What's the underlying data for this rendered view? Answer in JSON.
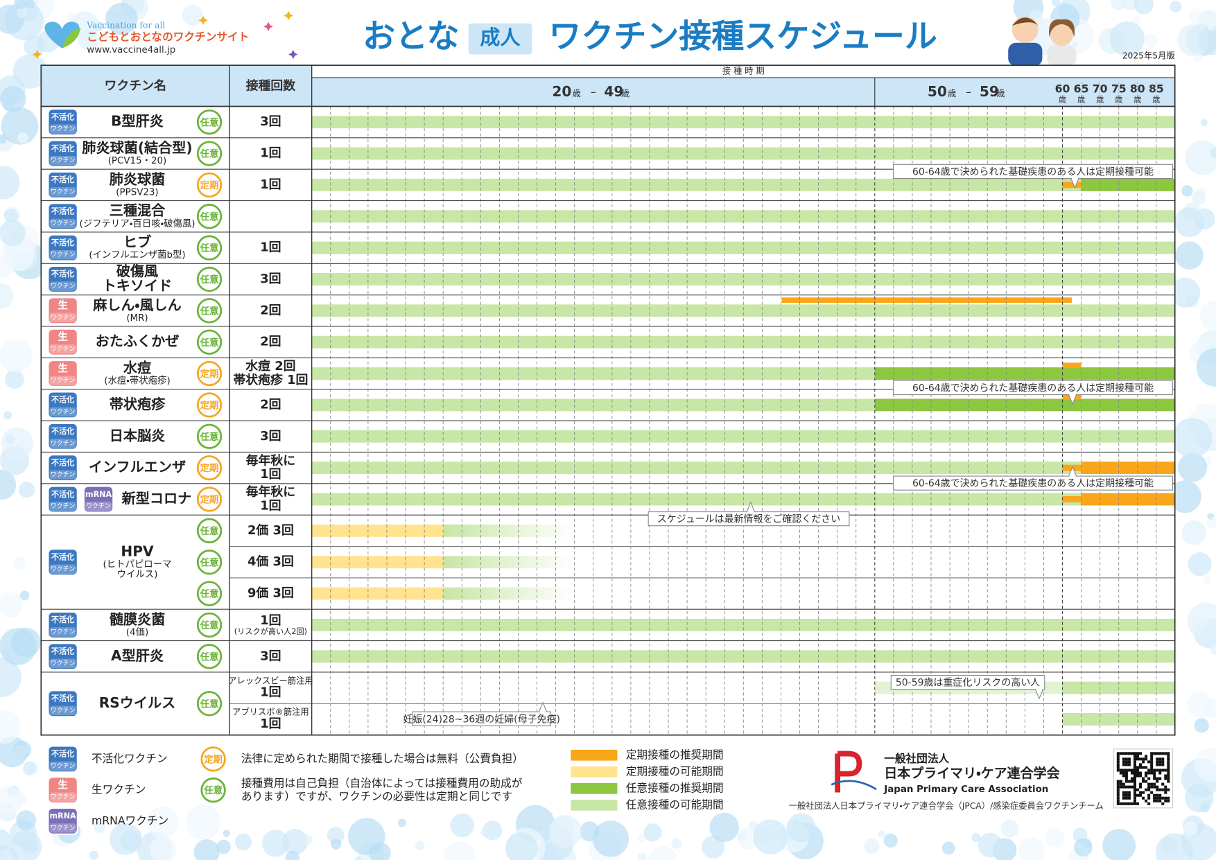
{
  "header": {
    "tagline": "Vaccination for all",
    "site_name": "こどもとおとなのワクチンサイト",
    "url": "www.vaccine4all.jp",
    "title_pre": "おとな",
    "title_badge": "成人",
    "title_main": "ワクチン接種スケジュール",
    "edition": "2025年5月版"
  },
  "table": {
    "col_name": "ワクチン名",
    "col_count": "接種回数",
    "col_period": "接 種 時 期",
    "age_ranges": [
      {
        "from": "20",
        "to": "49"
      },
      {
        "from": "50",
        "to": "59"
      }
    ],
    "age_unit": "歳",
    "range_dash": "–",
    "age_points": [
      "60",
      "65",
      "70",
      "75",
      "80",
      "85"
    ],
    "rows": [
      {
        "badges": [
          [
            "不活化",
            "ワクチン"
          ]
        ],
        "name": [
          "B型肝炎"
        ],
        "category": "任意",
        "subs": [
          {
            "count": [
              "3回"
            ]
          }
        ]
      },
      {
        "badges": [
          [
            "不活化",
            "ワクチン"
          ]
        ],
        "name": [
          "肺炎球菌(結合型)",
          "(PCV15・20)"
        ],
        "category": "任意",
        "subs": [
          {
            "count": [
              "1回"
            ]
          }
        ]
      },
      {
        "badges": [
          [
            "不活化",
            "ワクチン"
          ]
        ],
        "name": [
          "肺炎球菌",
          "(PPSV23)"
        ],
        "category": "定期",
        "subs": [
          {
            "count": [
              "1回"
            ]
          }
        ]
      },
      {
        "badges": [
          [
            "不活化",
            "ワクチン"
          ]
        ],
        "name": [
          "三種混合",
          "(ジフテリア・百日咳・破傷風)"
        ],
        "category": "任意",
        "subs": [
          {
            "count": []
          }
        ]
      },
      {
        "badges": [
          [
            "不活化",
            "ワクチン"
          ]
        ],
        "name": [
          "ヒブ",
          "(インフルエンザ菌b型)"
        ],
        "category": "任意",
        "subs": [
          {
            "count": [
              "1回"
            ]
          }
        ]
      },
      {
        "badges": [
          [
            "不活化",
            "ワクチン"
          ]
        ],
        "name": [
          "破傷風",
          "トキソイド"
        ],
        "category": "任意",
        "subs": [
          {
            "count": [
              "3回"
            ]
          }
        ]
      },
      {
        "badges": [
          [
            "生",
            "ワクチン"
          ]
        ],
        "name": [
          "麻しん・風しん",
          "(MR)"
        ],
        "category": "任意",
        "subs": [
          {
            "count": [
              "2回"
            ]
          }
        ]
      },
      {
        "badges": [
          [
            "生",
            "ワクチン"
          ]
        ],
        "name": [
          "おたふくかぜ"
        ],
        "category": "任意",
        "subs": [
          {
            "count": [
              "2回"
            ]
          }
        ]
      },
      {
        "badges": [
          [
            "生",
            "ワクチン"
          ]
        ],
        "name": [
          "水痘",
          "(水痘・帯状疱疹)"
        ],
        "category": "定期",
        "subs": [
          {
            "count": [
              "水痘 2回",
              "帯状疱疹 1回"
            ]
          }
        ]
      },
      {
        "badges": [
          [
            "不活化",
            "ワクチン"
          ]
        ],
        "name": [
          "帯状疱疹"
        ],
        "category": "定期",
        "subs": [
          {
            "count": [
              "2回"
            ]
          }
        ]
      },
      {
        "badges": [
          [
            "不活化",
            "ワクチン"
          ]
        ],
        "name": [
          "日本脳炎"
        ],
        "category": "任意",
        "subs": [
          {
            "count": [
              "3回"
            ]
          }
        ]
      },
      {
        "badges": [
          [
            "不活化",
            "ワクチン"
          ]
        ],
        "name": [
          "インフルエンザ"
        ],
        "category": "定期",
        "subs": [
          {
            "count": [
              "毎年秋に",
              "1回"
            ]
          }
        ]
      },
      {
        "badges": [
          [
            "不活化",
            "ワクチン"
          ],
          [
            "mRNA",
            "ワクチン"
          ]
        ],
        "name": [
          "新型コロナ"
        ],
        "category": "定期",
        "subs": [
          {
            "count": [
              "毎年秋に",
              "1回"
            ]
          }
        ]
      },
      {
        "badges": [
          [
            "不活化",
            "ワクチン"
          ]
        ],
        "name": [
          "HPV",
          "(ヒトパピローマ",
          "ウイルス)"
        ],
        "subs": [
          {
            "category": "任意",
            "count": [
              "2価 3回"
            ]
          },
          {
            "category": "任意",
            "count": [
              "4価 3回"
            ]
          },
          {
            "category": "任意",
            "count": [
              "9価 3回"
            ]
          }
        ]
      },
      {
        "badges": [
          [
            "不活化",
            "ワクチン"
          ]
        ],
        "name": [
          "髄膜炎菌",
          "(4価)"
        ],
        "category": "任意",
        "subs": [
          {
            "count": [
              "1回",
              "(リスクが高い人2回)"
            ]
          }
        ]
      },
      {
        "badges": [
          [
            "不活化",
            "ワクチン"
          ]
        ],
        "name": [
          "A型肝炎"
        ],
        "category": "任意",
        "subs": [
          {
            "count": [
              "3回"
            ]
          }
        ]
      },
      {
        "badges": [
          [
            "不活化",
            "ワクチン"
          ]
        ],
        "name": [
          "RSウイルス"
        ],
        "category": "任意",
        "subs": [
          {
            "count": [
              "アレックスビー筋注用",
              "1回"
            ]
          },
          {
            "count": [
              "アブリスボ®筋注用",
              "1回"
            ]
          }
        ]
      }
    ],
    "callouts": [
      "60-64歳で決められた基礎疾患のある人は定期接種可能",
      "スケジュールは最新情報をご確認ください",
      "50-59歳は重症化リスクの高い人",
      "妊娠(24)28~36週の妊婦(母子免疫)"
    ]
  },
  "legend": {
    "badges": [
      {
        "top": "不活化",
        "bottom": "ワクチン",
        "label": "不活化ワクチン"
      },
      {
        "top": "生",
        "bottom": "ワクチン",
        "label": "生ワクチン"
      },
      {
        "top": "mRNA",
        "bottom": "ワクチン",
        "label": "mRNAワクチン"
      }
    ],
    "categories": [
      {
        "badge": "定期",
        "text": [
          "法律に定められた期間で接種した場合は無料（公費負担）"
        ]
      },
      {
        "badge": "任意",
        "text": [
          "接種費用は自己負担（自治体によっては接種費用の助成が",
          "あります）ですが、ワクチンの必要性は定期と同じです"
        ]
      }
    ],
    "periods": [
      "定期接種の推奨期間",
      "定期接種の可能期間",
      "任意接種の推奨期間",
      "任意接種の可能期間"
    ]
  },
  "org": {
    "type": "一般社団法人",
    "name": "日本プライマリ・ケア連合学会",
    "name_en": "Japan Primary Care Association",
    "footer": "一般社団法人日本プライマリ・ケア連合学会（JPCA）/感染症委員会ワクチンチーム"
  }
}
